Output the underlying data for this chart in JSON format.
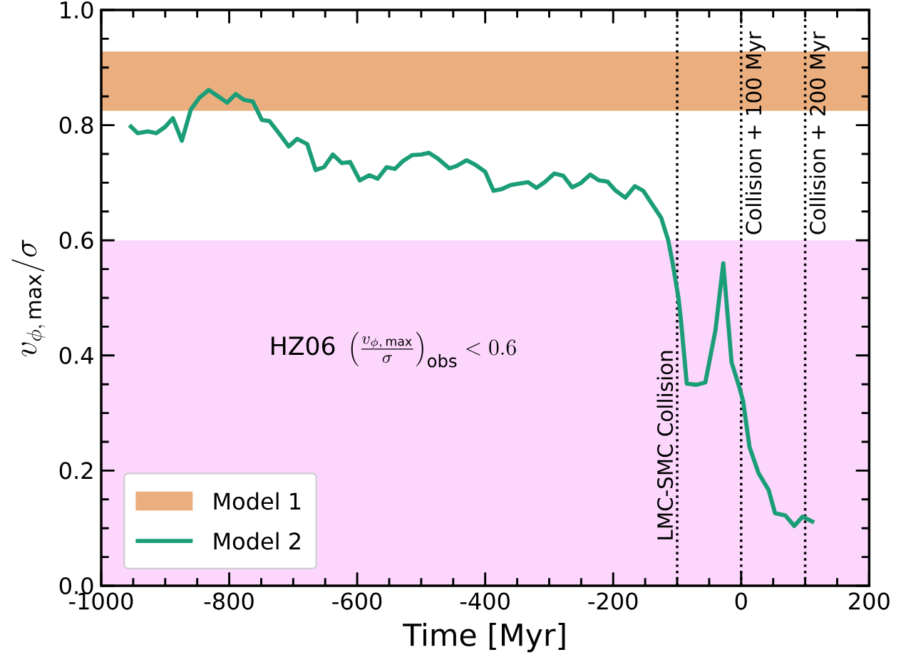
{
  "chart_data": {
    "type": "line",
    "xlabel": "Time [Myr]",
    "ylabel": "v_{\\phi,\\,\\mathrm{max}}/\\sigma",
    "xlim": [
      -1000,
      200
    ],
    "xticks": [
      -1000,
      -800,
      -600,
      -400,
      -200,
      0,
      200
    ],
    "ylim": [
      0,
      1.0
    ],
    "yticks": [
      {
        "value": 0,
        "label": "0.0"
      },
      0.2,
      0.4,
      0.6,
      0.8,
      {
        "value": 1.0,
        "label": "1.0"
      }
    ],
    "grid": false,
    "legend": "bottom left",
    "line_style": "solid",
    "marker": "none",
    "series": [
      {
        "name": "Model 2",
        "color": "#1b9e77",
        "x": [
          -956,
          -943,
          -927,
          -914,
          -900,
          -888,
          -874,
          -860,
          -847,
          -832,
          -816,
          -803,
          -790,
          -777,
          -763,
          -749,
          -737,
          -721,
          -707,
          -694,
          -678,
          -665,
          -652,
          -638,
          -624,
          -611,
          -596,
          -581,
          -568,
          -554,
          -541,
          -528,
          -514,
          -500,
          -488,
          -474,
          -456,
          -445,
          -429,
          -415,
          -400,
          -387,
          -374,
          -360,
          -333,
          -320,
          -307,
          -292,
          -278,
          -264,
          -251,
          -236,
          -222,
          -209,
          -196,
          -181,
          -166,
          -153,
          -140,
          -125,
          -114,
          -107,
          -98,
          -94,
          -85,
          -70,
          -56,
          -40,
          -28,
          -15,
          -4,
          3,
          13,
          27,
          43,
          53,
          69,
          83,
          96,
          114
        ],
        "values": [
          0.8,
          0.786,
          0.789,
          0.786,
          0.797,
          0.812,
          0.773,
          0.827,
          0.847,
          0.861,
          0.849,
          0.839,
          0.854,
          0.844,
          0.841,
          0.809,
          0.807,
          0.784,
          0.763,
          0.776,
          0.767,
          0.722,
          0.727,
          0.749,
          0.734,
          0.736,
          0.704,
          0.713,
          0.707,
          0.727,
          0.724,
          0.738,
          0.748,
          0.749,
          0.752,
          0.742,
          0.725,
          0.729,
          0.739,
          0.731,
          0.719,
          0.686,
          0.689,
          0.696,
          0.701,
          0.691,
          0.701,
          0.716,
          0.712,
          0.692,
          0.699,
          0.714,
          0.704,
          0.702,
          0.686,
          0.674,
          0.694,
          0.686,
          0.664,
          0.639,
          0.6,
          0.56,
          0.5,
          0.46,
          0.351,
          0.349,
          0.353,
          0.445,
          0.56,
          0.388,
          0.349,
          0.321,
          0.241,
          0.196,
          0.166,
          0.126,
          0.122,
          0.104,
          0.12,
          0.11
        ]
      }
    ],
    "bands": [
      {
        "axis": "y",
        "from": 0.825,
        "to": 0.928,
        "label": "Model 1",
        "color": "#ebaf7f"
      },
      {
        "axis": "y",
        "from": 0,
        "to": 0.6,
        "color": "#fdd6fd"
      }
    ],
    "ref_lines": [
      {
        "axis": "x",
        "value": -100,
        "label": "LMC-SMC Collision",
        "line_style": "dotted",
        "color": "#000000"
      },
      {
        "axis": "x",
        "value": 0,
        "label": "Collision + 100 Myr",
        "line_style": "dotted",
        "color": "#000000"
      },
      {
        "axis": "x",
        "value": 100,
        "label": "Collision + 200 Myr",
        "line_style": "dotted",
        "color": "#000000"
      }
    ],
    "annotations": [
      "\\mathrm{HZ06}\\ \\left(\\frac{v_{\\phi,\\,\\mathrm{max}}}{\\sigma}\\right)_{\\mathrm{obs}} < 0.6"
    ]
  }
}
